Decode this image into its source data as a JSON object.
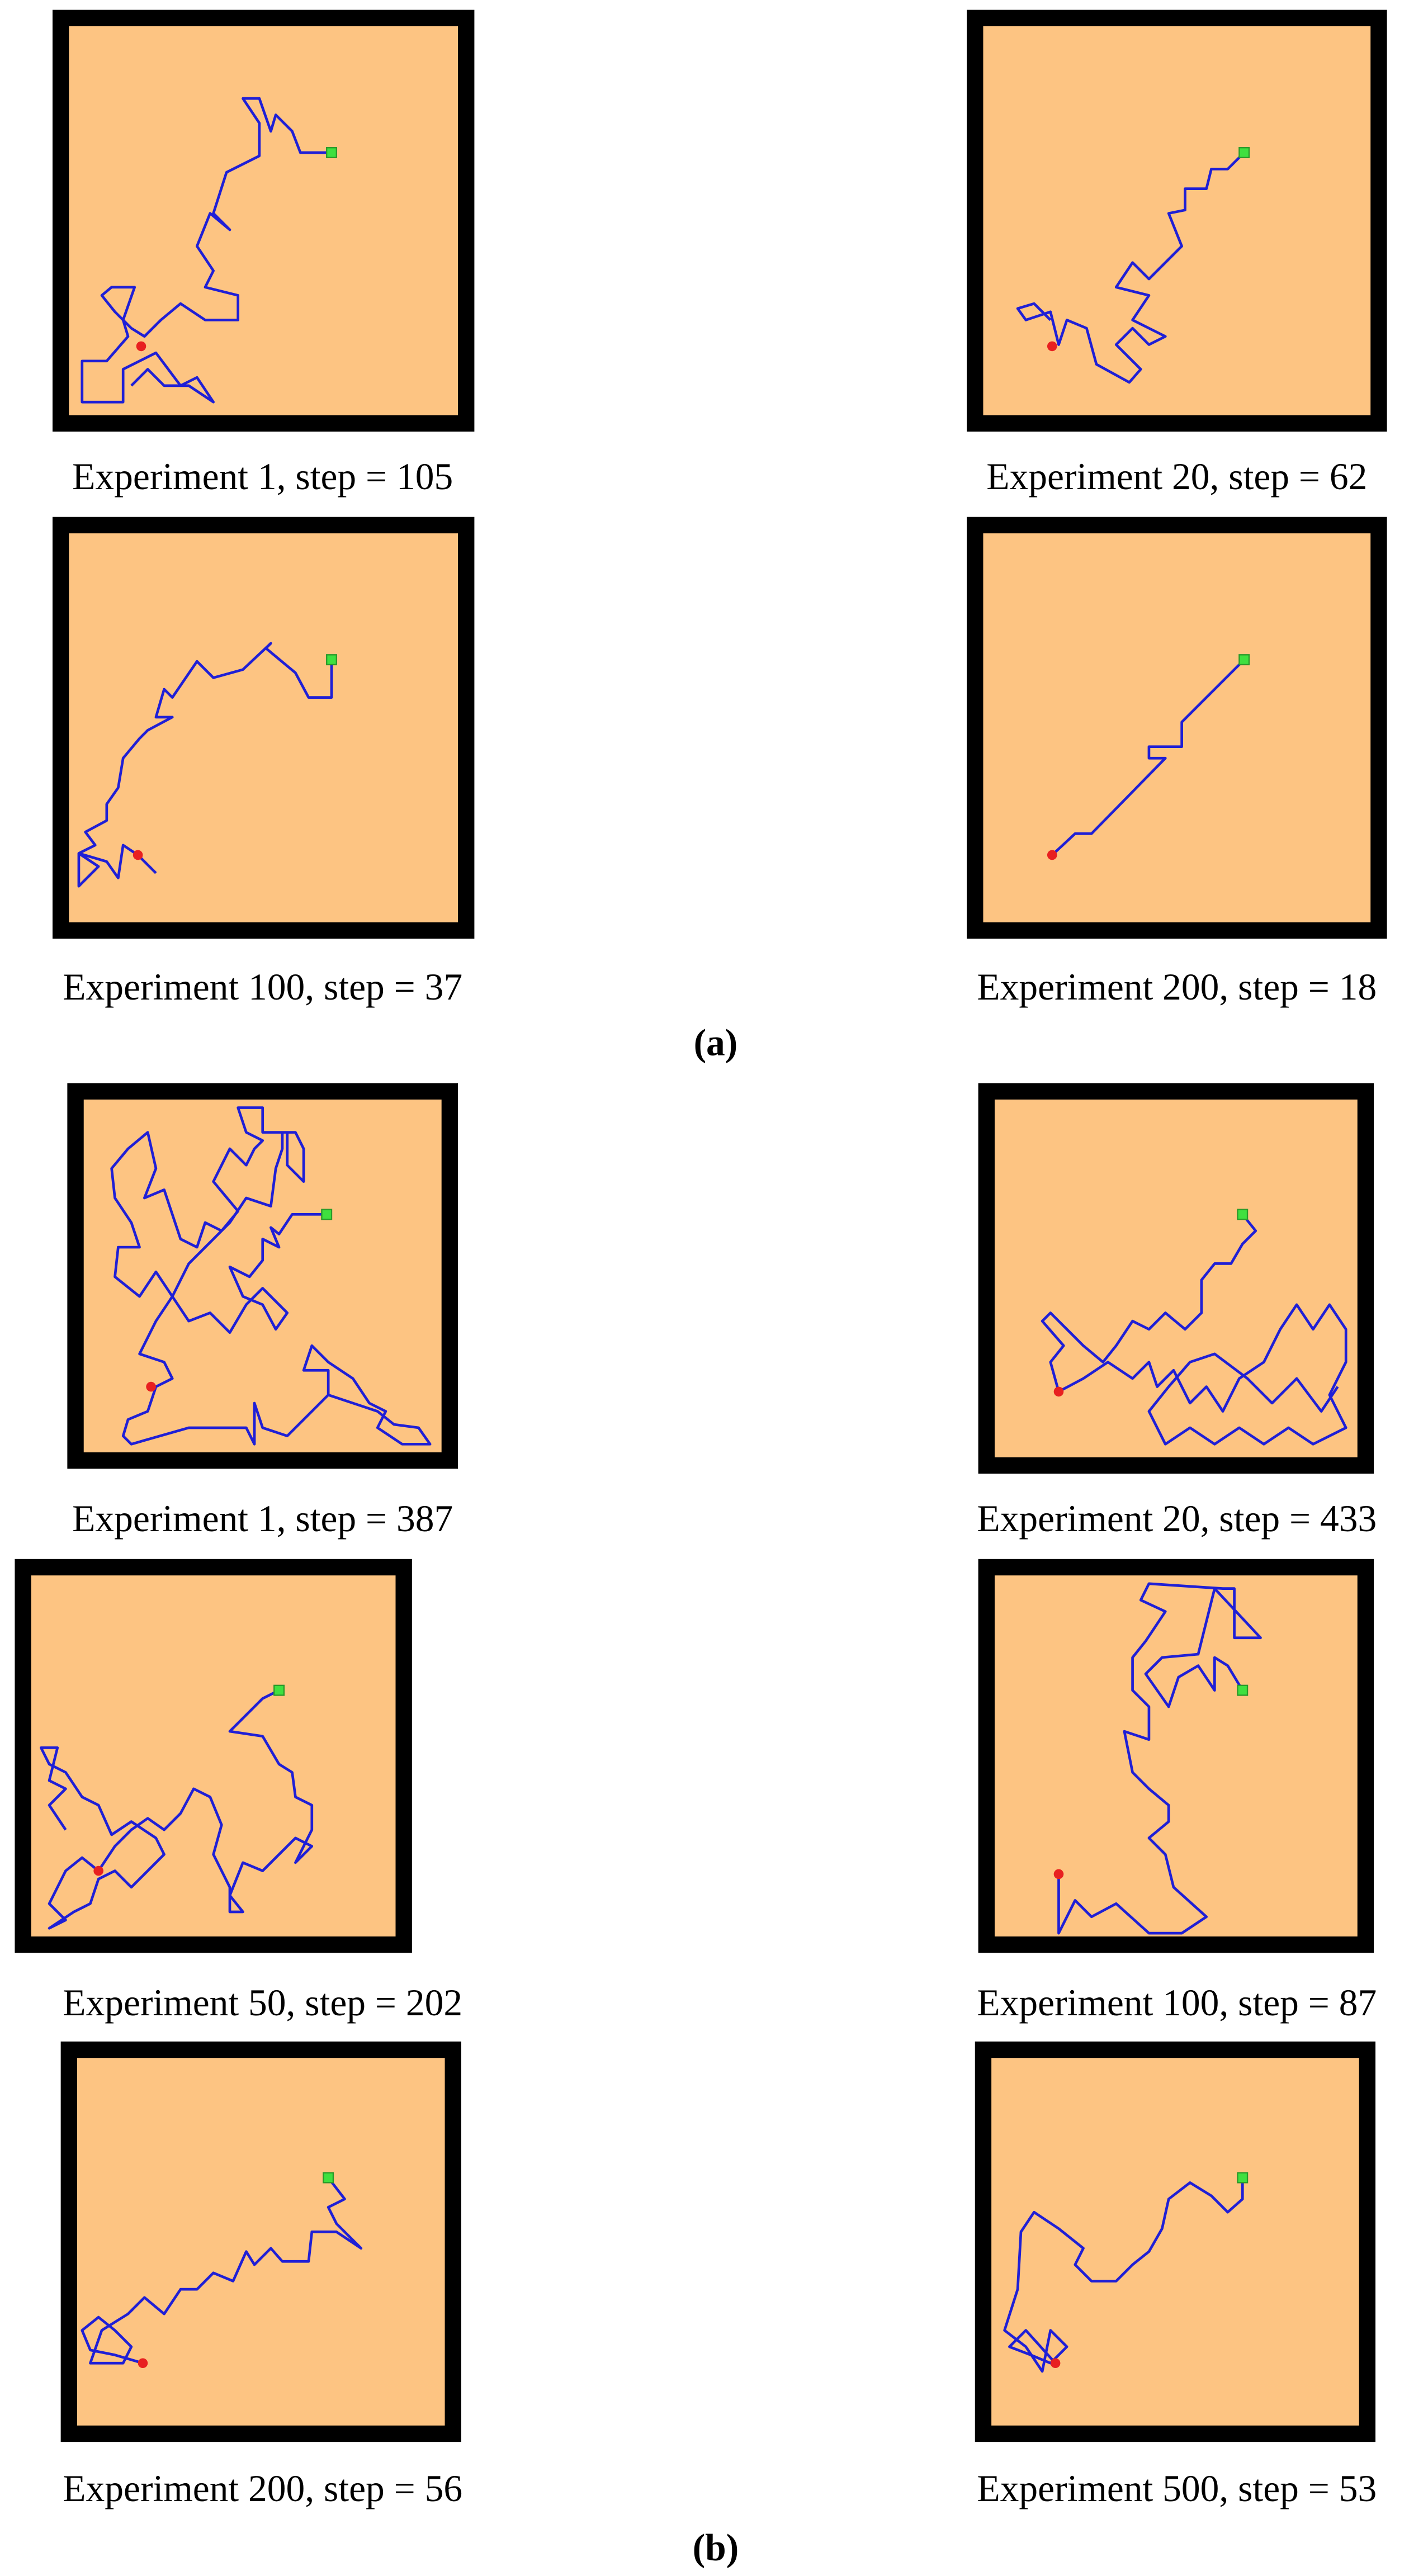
{
  "figure": {
    "panels": [
      {
        "caption": "Experiment 1, step = 105"
      },
      {
        "caption": "Experiment 20, step = 62"
      },
      {
        "caption": "Experiment 100, step = 37"
      },
      {
        "caption": "Experiment 200, step = 18"
      },
      {
        "caption": "Experiment 1, step = 387"
      },
      {
        "caption": "Experiment 20, step = 433"
      },
      {
        "caption": "Experiment 50, step = 202"
      },
      {
        "caption": "Experiment 100, step = 87"
      },
      {
        "caption": "Experiment 200, step = 56"
      },
      {
        "caption": "Experiment 500, step = 53"
      }
    ],
    "subfigure_labels": [
      "(a)",
      "(b)"
    ]
  }
}
